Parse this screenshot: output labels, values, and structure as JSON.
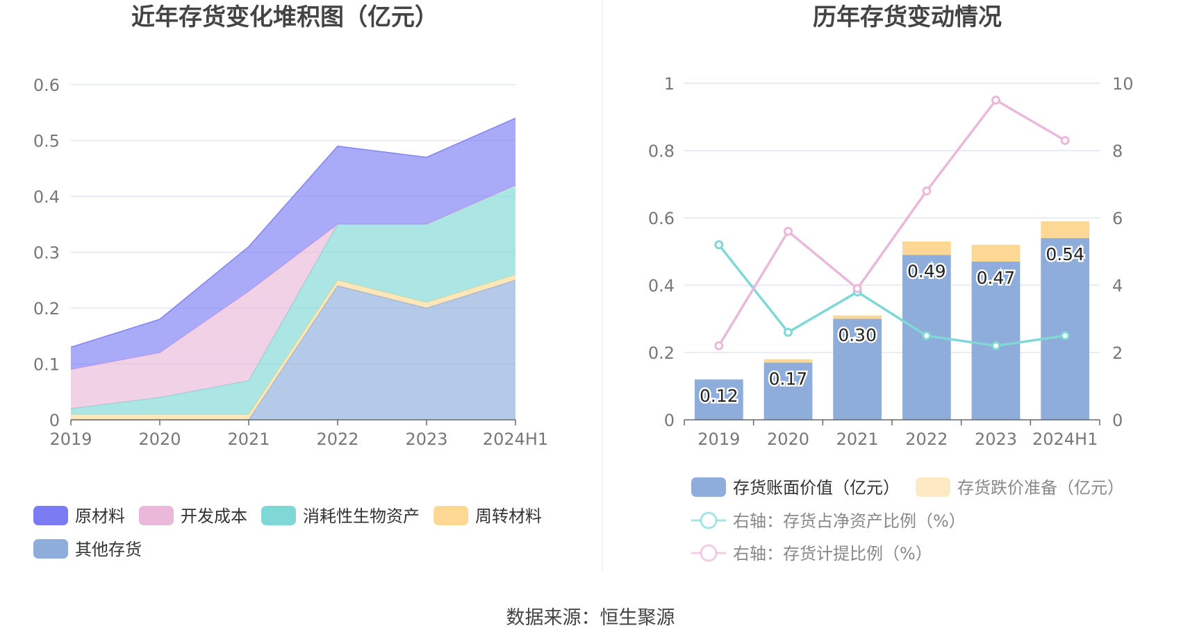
{
  "source": "数据来源：恒生聚源",
  "colors": {
    "raw": "#7B7CF4",
    "dev": "#EAB8D9",
    "bio": "#7FD8D6",
    "turnover": "#FCD894",
    "other": "#8EADDB",
    "bar_book": "#8EADDB",
    "bar_reserve": "#FCD894",
    "line_ratio": "#7FD8D6",
    "line_provision": "#EAB8D9"
  },
  "chart_data": [
    {
      "type": "area",
      "title": "近年存货变化堆积图（亿元）",
      "categories": [
        "2019",
        "2020",
        "2021",
        "2022",
        "2023",
        "2024H1"
      ],
      "ylim": [
        0,
        0.6
      ],
      "yticks": [
        0,
        0.1,
        0.2,
        0.3,
        0.4,
        0.5,
        0.6
      ],
      "ytick_labels": [
        "0",
        "0.1",
        "0.2",
        "0.3",
        "0.4",
        "0.5",
        "0.6"
      ],
      "stacked": true,
      "grid": true,
      "legend_position": "bottom",
      "series": [
        {
          "name": "其他存货",
          "key": "other",
          "values": [
            0,
            0,
            0,
            0.24,
            0.2,
            0.25
          ]
        },
        {
          "name": "周转材料",
          "key": "turnover",
          "values": [
            0.01,
            0.01,
            0.01,
            0.01,
            0.01,
            0.01
          ]
        },
        {
          "name": "消耗性生物资产",
          "key": "bio",
          "values": [
            0.01,
            0.03,
            0.06,
            0.1,
            0.14,
            0.16
          ]
        },
        {
          "name": "开发成本",
          "key": "dev",
          "values": [
            0.07,
            0.08,
            0.16,
            0,
            0,
            0
          ]
        },
        {
          "name": "原材料",
          "key": "raw",
          "values": [
            0.04,
            0.06,
            0.08,
            0.14,
            0.12,
            0.12
          ]
        }
      ],
      "legend_order": [
        "原材料",
        "开发成本",
        "消耗性生物资产",
        "周转材料",
        "其他存货"
      ]
    },
    {
      "type": "bar",
      "title": "历年存货变动情况",
      "categories": [
        "2019",
        "2020",
        "2021",
        "2022",
        "2023",
        "2024H1"
      ],
      "ylim": [
        0,
        1
      ],
      "yticks": [
        0,
        0.2,
        0.4,
        0.6,
        0.8,
        1
      ],
      "ytick_labels": [
        "0",
        "0.2",
        "0.4",
        "0.6",
        "0.8",
        "1"
      ],
      "y2lim": [
        0,
        10
      ],
      "y2ticks": [
        0,
        2,
        4,
        6,
        8,
        10
      ],
      "y2tick_labels": [
        "0",
        "2",
        "4",
        "6",
        "8",
        "10"
      ],
      "grid": true,
      "legend_position": "bottom",
      "series": [
        {
          "name": "存货账面价值（亿元）",
          "key": "bar_book",
          "kind": "bar",
          "stack": true,
          "values": [
            0.12,
            0.17,
            0.3,
            0.49,
            0.47,
            0.54
          ],
          "labels": [
            "0.12",
            "0.17",
            "0.30",
            "0.49",
            "0.47",
            "0.54"
          ]
        },
        {
          "name": "存货跌价准备（亿元）",
          "key": "bar_reserve",
          "kind": "bar",
          "stack": true,
          "values": [
            0,
            0.01,
            0.01,
            0.04,
            0.05,
            0.05
          ]
        },
        {
          "name": "右轴：存货占净资产比例（%）",
          "key": "line_ratio",
          "kind": "line",
          "axis": "right",
          "values": [
            5.2,
            2.6,
            3.8,
            2.5,
            2.2,
            2.5
          ]
        },
        {
          "name": "右轴：存货计提比例（%）",
          "key": "line_provision",
          "kind": "line",
          "axis": "right",
          "values": [
            2.2,
            5.6,
            3.9,
            6.8,
            9.5,
            8.3
          ]
        }
      ]
    }
  ]
}
